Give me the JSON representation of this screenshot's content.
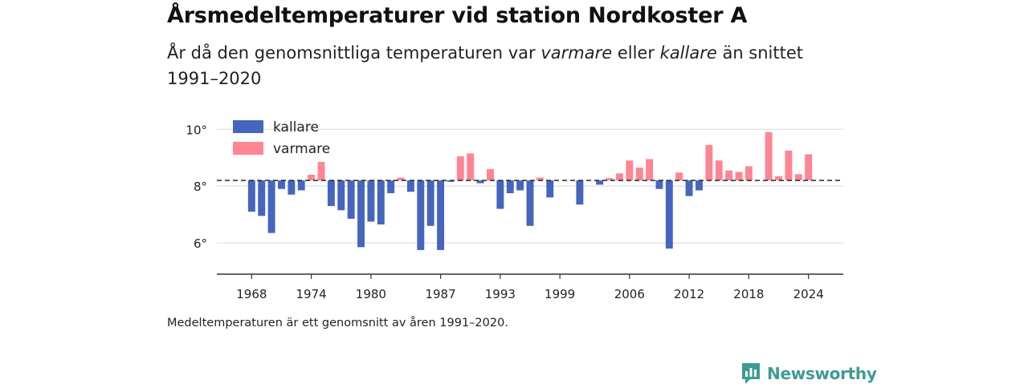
{
  "header": {
    "title": "Årsmedeltemperaturer vid station Nordkoster A",
    "subtitle_pre": "År då den genomsnittliga temperaturen var ",
    "subtitle_warm": "varmare",
    "subtitle_mid": " eller ",
    "subtitle_cold": "kallare",
    "subtitle_post": " än snittet 1991–2020"
  },
  "footnote": "Medeltemperaturen är ett genomsnitt av åren 1991–2020.",
  "brand": {
    "name": "Newsworthy",
    "icon": "newsworthy-logo-icon"
  },
  "colors": {
    "cold": "#4565be",
    "warm": "#ff8593",
    "reference": "#333333",
    "grid": "#d9d9d9",
    "brand": "#3d9c92"
  },
  "chart_data": {
    "type": "bar",
    "baseline": 8.2,
    "ylim": [
      4.9,
      10.6
    ],
    "xlim": [
      1964.5,
      2027.5
    ],
    "y_ticks": [
      {
        "value": 6,
        "label": "6°"
      },
      {
        "value": 8,
        "label": "8°"
      },
      {
        "value": 10,
        "label": "10°"
      }
    ],
    "x_ticks": [
      {
        "value": 1968,
        "label": "1968"
      },
      {
        "value": 1974,
        "label": "1974"
      },
      {
        "value": 1980,
        "label": "1980"
      },
      {
        "value": 1987,
        "label": "1987"
      },
      {
        "value": 1993,
        "label": "1993"
      },
      {
        "value": 1999,
        "label": "1999"
      },
      {
        "value": 2006,
        "label": "2006"
      },
      {
        "value": 2012,
        "label": "2012"
      },
      {
        "value": 2018,
        "label": "2018"
      },
      {
        "value": 2024,
        "label": "2024"
      }
    ],
    "legend": {
      "placement": "top-left",
      "entries": [
        {
          "key": "cold",
          "label": "kallare"
        },
        {
          "key": "warm",
          "label": "varmare"
        }
      ]
    },
    "series": [
      {
        "name": "kallare",
        "color": "#4565be"
      },
      {
        "name": "varmare",
        "color": "#ff8593"
      }
    ],
    "years": [
      1968,
      1969,
      1970,
      1971,
      1972,
      1973,
      1974,
      1975,
      1976,
      1977,
      1978,
      1979,
      1980,
      1981,
      1982,
      1983,
      1984,
      1985,
      1986,
      1987,
      1988,
      1989,
      1990,
      1991,
      1992,
      1993,
      1994,
      1995,
      1996,
      1997,
      1998,
      2001,
      2003,
      2004,
      2005,
      2006,
      2007,
      2008,
      2009,
      2010,
      2011,
      2012,
      2013,
      2014,
      2015,
      2016,
      2017,
      2018,
      2020,
      2021,
      2022,
      2023,
      2024
    ],
    "values": [
      7.1,
      6.95,
      6.35,
      7.9,
      7.7,
      7.85,
      8.4,
      8.85,
      7.3,
      7.15,
      6.85,
      5.85,
      6.75,
      6.65,
      7.75,
      8.3,
      7.8,
      5.75,
      6.6,
      5.75,
      8.15,
      9.05,
      9.15,
      8.1,
      8.6,
      7.2,
      7.75,
      7.85,
      6.6,
      8.3,
      7.6,
      7.35,
      8.05,
      8.28,
      8.45,
      8.9,
      8.65,
      8.95,
      7.9,
      5.8,
      8.48,
      7.65,
      7.85,
      9.45,
      8.9,
      8.55,
      8.5,
      8.7,
      9.9,
      8.35,
      9.25,
      8.42,
      9.12
    ]
  }
}
